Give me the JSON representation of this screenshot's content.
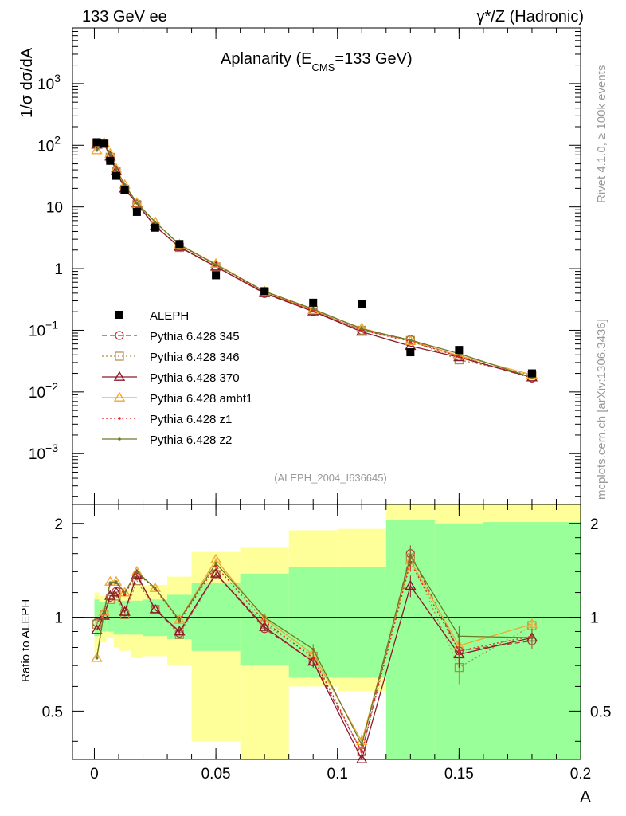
{
  "header": {
    "left": "133 GeV ee",
    "right_main": "γ*/Z (Hadronic)"
  },
  "side": {
    "rivet": "Rivet 4.1.0, ≥ 100k events",
    "mcplots": "mcplots.cern.ch [arXiv:1306.3436]"
  },
  "chart_data": {
    "type": "line",
    "title_parts": {
      "pre": "Aplanarity (E",
      "sub": "CMS",
      "post": "=133 GeV)"
    },
    "paper_id": "(ALEPH_2004_I636645)",
    "xlabel": "A",
    "ylabel": "1/σ  dσ/dA",
    "ratio_ylabel": "Ratio to ALEPH",
    "xlim": [
      -0.009,
      0.2
    ],
    "ylim": [
      0.00015,
      8000
    ],
    "ratio_ylim": [
      0.35,
      2.3
    ],
    "xticks": [
      0,
      0.05,
      0.1,
      0.15,
      0.2
    ],
    "xtick_labels": [
      "0",
      "0.05",
      "0.1",
      "0.15",
      "0.2"
    ],
    "yticks": [
      {
        "v": 1000,
        "base": "10",
        "exp": "3"
      },
      {
        "v": 100,
        "base": "10",
        "exp": "2"
      },
      {
        "v": 10,
        "base": "10",
        "exp": ""
      },
      {
        "v": 1,
        "base": "1",
        "exp": ""
      },
      {
        "v": 0.1,
        "base": "10",
        "exp": "−1"
      },
      {
        "v": 0.01,
        "base": "10",
        "exp": "−2"
      },
      {
        "v": 0.001,
        "base": "10",
        "exp": "−3"
      }
    ],
    "ratio_yticks": [
      {
        "v": 0.5,
        "label": "0.5"
      },
      {
        "v": 1,
        "label": "1"
      },
      {
        "v": 2,
        "label": "2"
      }
    ],
    "x": [
      0.001,
      0.004,
      0.0065,
      0.009,
      0.0125,
      0.0175,
      0.025,
      0.035,
      0.05,
      0.07,
      0.09,
      0.11,
      0.13,
      0.15,
      0.18
    ],
    "bin_edges": [
      0,
      0.002,
      0.005,
      0.008,
      0.01,
      0.015,
      0.02,
      0.03,
      0.04,
      0.06,
      0.08,
      0.1,
      0.12,
      0.14,
      0.16,
      0.2
    ],
    "band_inner": [
      [
        0.87,
        1.14
      ],
      [
        0.9,
        1.12
      ],
      [
        0.9,
        1.11
      ],
      [
        0.88,
        1.13
      ],
      [
        0.88,
        1.13
      ],
      [
        0.88,
        1.13
      ],
      [
        0.87,
        1.14
      ],
      [
        0.85,
        1.18
      ],
      [
        0.78,
        1.29
      ],
      [
        0.7,
        1.38
      ],
      [
        0.64,
        1.45
      ],
      [
        0.64,
        1.45
      ],
      [
        0.3,
        2.05
      ],
      [
        0.3,
        2.0
      ],
      [
        0.3,
        2.02
      ]
    ],
    "band_outer": [
      [
        0.77,
        1.2
      ],
      [
        0.83,
        1.17
      ],
      [
        0.86,
        1.15
      ],
      [
        0.8,
        1.2
      ],
      [
        0.78,
        1.22
      ],
      [
        0.74,
        1.27
      ],
      [
        0.75,
        1.27
      ],
      [
        0.7,
        1.35
      ],
      [
        0.4,
        1.62
      ],
      [
        0.35,
        1.67
      ],
      [
        0.6,
        1.9
      ],
      [
        0.58,
        1.92
      ],
      [
        0.3,
        3.0
      ],
      [
        0.3,
        3.0
      ],
      [
        0.3,
        3.0
      ]
    ],
    "series": [
      {
        "name": "ALEPH",
        "style": "data",
        "color": "#000000",
        "values": [
          112,
          106,
          56,
          32,
          19,
          8.3,
          4.6,
          2.5,
          0.78,
          0.43,
          0.28,
          0.27,
          0.044,
          0.048,
          0.02
        ]
      },
      {
        "name": "Pythia 6.428 345",
        "style": "dashed",
        "marker": "circle",
        "color": "#b2383c",
        "ratio": [
          0.96,
          1.02,
          1.16,
          1.21,
          1.04,
          1.36,
          1.06,
          0.89,
          1.38,
          0.92,
          0.72,
          0.37,
          1.6,
          0.78,
          0.84
        ],
        "err": [
          0,
          0,
          0,
          0,
          0,
          0,
          0,
          0,
          0.02,
          0.02,
          0.03,
          0.03,
          0.1,
          0.07,
          0.05
        ]
      },
      {
        "name": "Pythia 6.428 346",
        "style": "dotted",
        "marker": "square",
        "color": "#b08a4a",
        "ratio": [
          0.95,
          1.02,
          1.14,
          1.17,
          1.02,
          1.31,
          1.06,
          0.88,
          1.37,
          0.95,
          0.75,
          0.37,
          1.55,
          0.69,
          0.94
        ],
        "err": [
          0,
          0,
          0,
          0,
          0,
          0,
          0,
          0,
          0.02,
          0.02,
          0.03,
          0.03,
          0.1,
          0.08,
          0.05
        ]
      },
      {
        "name": "Pythia 6.428 370",
        "style": "solid",
        "marker": "triangle",
        "color": "#8b1a2a",
        "ratio": [
          0.91,
          1.01,
          1.17,
          1.2,
          1.04,
          1.37,
          1.06,
          0.9,
          1.38,
          0.93,
          0.72,
          0.35,
          1.26,
          0.76,
          0.86
        ],
        "err": [
          0,
          0,
          0,
          0,
          0,
          0,
          0,
          0,
          0.02,
          0.02,
          0.03,
          0.03,
          0.1,
          0.07,
          0.05
        ]
      },
      {
        "name": "Pythia 6.428 ambt1",
        "style": "solid",
        "marker": "triangle",
        "color": "#f0a830",
        "ratio": [
          0.74,
          1.04,
          1.3,
          1.3,
          1.2,
          1.4,
          1.24,
          0.98,
          1.53,
          0.99,
          0.76,
          0.4,
          1.52,
          0.81,
          0.95
        ],
        "err": [
          0,
          0,
          0,
          0,
          0,
          0,
          0,
          0,
          0.02,
          0.02,
          0.03,
          0.03,
          0.1,
          0.07,
          0.05
        ]
      },
      {
        "name": "Pythia 6.428 z1",
        "style": "dotted",
        "marker": "dot",
        "color": "#e02020",
        "ratio": [
          0.74,
          1.03,
          1.28,
          1.29,
          1.18,
          1.39,
          1.23,
          0.97,
          1.46,
          0.97,
          0.74,
          0.37,
          1.5,
          0.78,
          0.87
        ],
        "err": [
          0,
          0,
          0,
          0,
          0,
          0,
          0,
          0,
          0.02,
          0.02,
          0.03,
          0.03,
          0.1,
          0.07,
          0.05
        ]
      },
      {
        "name": "Pythia 6.428 z2",
        "style": "solid",
        "marker": "dot",
        "color": "#6b7a2a",
        "ratio": [
          0.74,
          1.04,
          1.29,
          1.3,
          1.2,
          1.4,
          1.24,
          0.98,
          1.49,
          1.0,
          0.79,
          0.39,
          1.57,
          0.87,
          0.86
        ],
        "err": [
          0,
          0,
          0,
          0,
          0,
          0,
          0,
          0,
          0.02,
          0.02,
          0.03,
          0.03,
          0.1,
          0.07,
          0.05
        ]
      }
    ]
  }
}
